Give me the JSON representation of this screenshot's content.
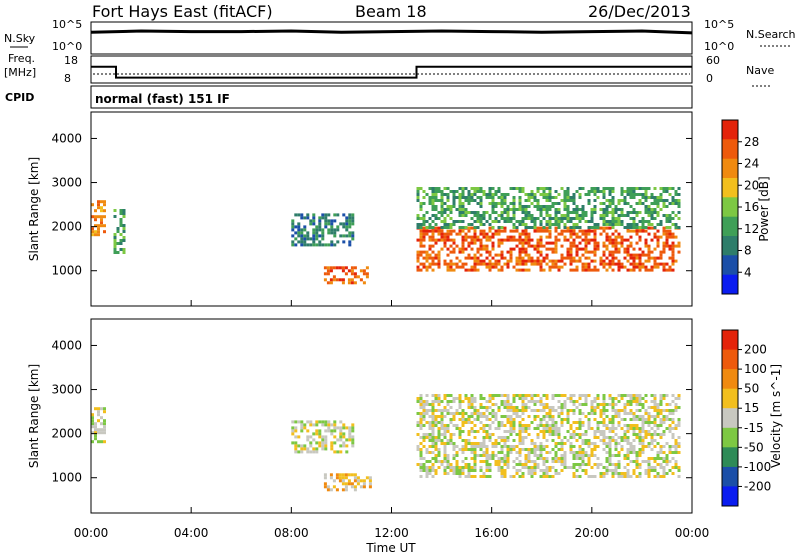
{
  "header": {
    "station": "Fort Hays East (fitACF)",
    "beam": "Beam 18",
    "date": "26/Dec/2013"
  },
  "status_panel": {
    "nsky_label": "N.Sky",
    "nsky_ticks": [
      "10^5",
      "10^0"
    ],
    "nsearch_label": "N.Search",
    "nsearch_ticks": [
      "10^5",
      "10^0"
    ],
    "freq_label": "Freq.",
    "freq_unit": "[MHz]",
    "freq_ticks": [
      "18",
      "8"
    ],
    "nave_label": "Nave",
    "nave_ticks": [
      "60",
      "0"
    ],
    "cpid_label": "CPID",
    "cpid_text": "normal (fast) 151 IF"
  },
  "colors": {
    "power": [
      "#0a1cf0",
      "#1b4fa8",
      "#2e7d6a",
      "#3f9f57",
      "#7dc843",
      "#f2bf1e",
      "#f08a10",
      "#ee5a0c",
      "#e4230a"
    ],
    "velocity": [
      "#e4230a",
      "#ee5a0c",
      "#f08a10",
      "#f2bf1e",
      "#c8c8c0",
      "#7dc843",
      "#2e8b57",
      "#1b4fa8",
      "#0a1cf0"
    ]
  },
  "chart_data": [
    {
      "type": "line",
      "title": "",
      "ylabel": "N.Sky",
      "x": [
        0,
        2,
        4,
        6,
        8,
        10,
        12,
        14,
        16,
        18,
        20,
        22,
        24
      ],
      "series": [
        {
          "name": "N.Sky",
          "values": [
            3.4,
            3.6,
            3.5,
            3.5,
            3.6,
            3.4,
            3.5,
            3.6,
            3.5,
            3.4,
            3.5,
            3.6,
            3.3
          ]
        }
      ],
      "ylim": [
        0,
        5
      ]
    },
    {
      "type": "line",
      "ylabel": "Freq.",
      "x": [
        0,
        1,
        1,
        13,
        13,
        24
      ],
      "series": [
        {
          "name": "Freq.",
          "values": [
            14,
            14,
            10,
            10,
            14,
            14
          ]
        }
      ],
      "ylim": [
        8,
        18
      ]
    },
    {
      "type": "heatmap",
      "title": "Power [dB]",
      "xlabel": "Time UT",
      "ylabel": "Slant Range [km]",
      "xticks": [
        "00:00",
        "04:00",
        "08:00",
        "12:00",
        "16:00",
        "20:00",
        "00:00"
      ],
      "yticks": [
        "1000",
        "2000",
        "3000",
        "4000"
      ],
      "xlim": [
        0,
        24
      ],
      "ylim": [
        200,
        4600
      ],
      "colorbar": {
        "label": "Power [dB]",
        "ticks": [
          "4",
          "8",
          "12",
          "16",
          "20",
          "24",
          "28"
        ],
        "range": [
          0,
          30
        ]
      },
      "regions": [
        {
          "t": [
            0,
            0.5
          ],
          "r": [
            1800,
            2600
          ],
          "value": 22
        },
        {
          "t": [
            0.9,
            1.3
          ],
          "r": [
            1400,
            2400
          ],
          "value": 10
        },
        {
          "t": [
            9.3,
            11.2
          ],
          "r": [
            700,
            1100
          ],
          "value": 26
        },
        {
          "t": [
            8.0,
            10.5
          ],
          "r": [
            1600,
            2300
          ],
          "value": 8
        },
        {
          "t": [
            13.0,
            23.5
          ],
          "r": [
            1000,
            2000
          ],
          "value": 27
        },
        {
          "t": [
            13.0,
            23.5
          ],
          "r": [
            2000,
            2900
          ],
          "value": 11
        }
      ]
    },
    {
      "type": "heatmap",
      "title": "Velocity [m s^-1]",
      "xlabel": "Time UT",
      "ylabel": "Slant Range [km]",
      "xticks": [
        "00:00",
        "04:00",
        "08:00",
        "12:00",
        "16:00",
        "20:00",
        "00:00"
      ],
      "yticks": [
        "1000",
        "2000",
        "3000",
        "4000"
      ],
      "xlim": [
        0,
        24
      ],
      "ylim": [
        200,
        4600
      ],
      "colorbar": {
        "label": "Velocity [m s^-1]",
        "ticks": [
          "200",
          "100",
          "50",
          "15",
          "-15",
          "-50",
          "-100",
          "-200"
        ],
        "range": [
          -250,
          250
        ]
      },
      "regions": [
        {
          "t": [
            0,
            0.5
          ],
          "r": [
            1800,
            2600
          ],
          "value": 0
        },
        {
          "t": [
            9.3,
            11.2
          ],
          "r": [
            700,
            1100
          ],
          "value": 35
        },
        {
          "t": [
            8.0,
            10.5
          ],
          "r": [
            1600,
            2300
          ],
          "value": 0
        },
        {
          "t": [
            13.0,
            23.5
          ],
          "r": [
            1000,
            2900
          ],
          "value": 0
        }
      ]
    }
  ]
}
